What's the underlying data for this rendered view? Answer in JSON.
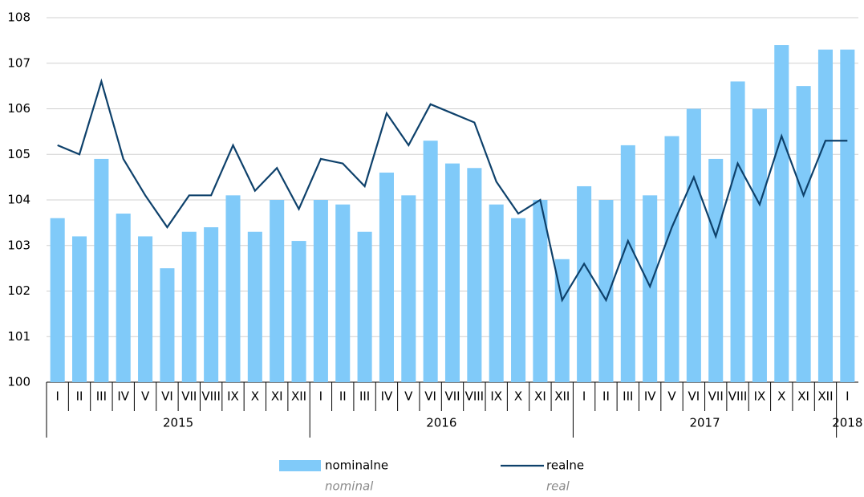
{
  "chart_data": {
    "type": "bar-line",
    "groups": [
      {
        "label": "2015",
        "categories": [
          "I",
          "II",
          "III",
          "IV",
          "V",
          "VI",
          "VII",
          "VIII",
          "IX",
          "X",
          "XI",
          "XII"
        ]
      },
      {
        "label": "2016",
        "categories": [
          "I",
          "II",
          "III",
          "IV",
          "V",
          "VI",
          "VII",
          "VIII",
          "IX",
          "X",
          "XI",
          "XII"
        ]
      },
      {
        "label": "2017",
        "categories": [
          "I",
          "II",
          "III",
          "IV",
          "V",
          "VI",
          "VII",
          "VIII",
          "IX",
          "X",
          "XI",
          "XII"
        ]
      },
      {
        "label": "2018",
        "categories": [
          "I"
        ]
      }
    ],
    "series": [
      {
        "name": "nominalne",
        "name_en": "nominal",
        "type": "bar",
        "color": "#80caf9",
        "values": [
          103.6,
          103.2,
          104.9,
          103.7,
          103.2,
          102.5,
          103.3,
          103.4,
          104.1,
          103.3,
          104.0,
          103.1,
          104.0,
          103.9,
          103.3,
          104.6,
          104.1,
          105.3,
          104.8,
          104.7,
          103.9,
          103.6,
          104.0,
          102.7,
          104.3,
          104.0,
          105.2,
          104.1,
          105.4,
          106.0,
          104.9,
          106.6,
          106.0,
          107.4,
          106.5,
          107.3,
          107.3
        ]
      },
      {
        "name": "realne",
        "name_en": "real",
        "type": "line",
        "color": "#0e416b",
        "values": [
          105.2,
          105.0,
          106.6,
          104.9,
          104.1,
          103.4,
          104.1,
          104.1,
          105.2,
          104.2,
          104.7,
          103.8,
          104.9,
          104.8,
          104.3,
          105.9,
          105.2,
          106.1,
          105.9,
          105.7,
          104.4,
          103.7,
          104.0,
          101.8,
          102.6,
          101.8,
          103.1,
          102.1,
          103.4,
          104.5,
          103.2,
          104.8,
          103.9,
          105.4,
          104.1,
          105.3,
          105.3
        ]
      }
    ],
    "ylim": [
      100,
      108
    ],
    "yticks": [
      100,
      101,
      102,
      103,
      104,
      105,
      106,
      107,
      108
    ],
    "grid": true
  }
}
